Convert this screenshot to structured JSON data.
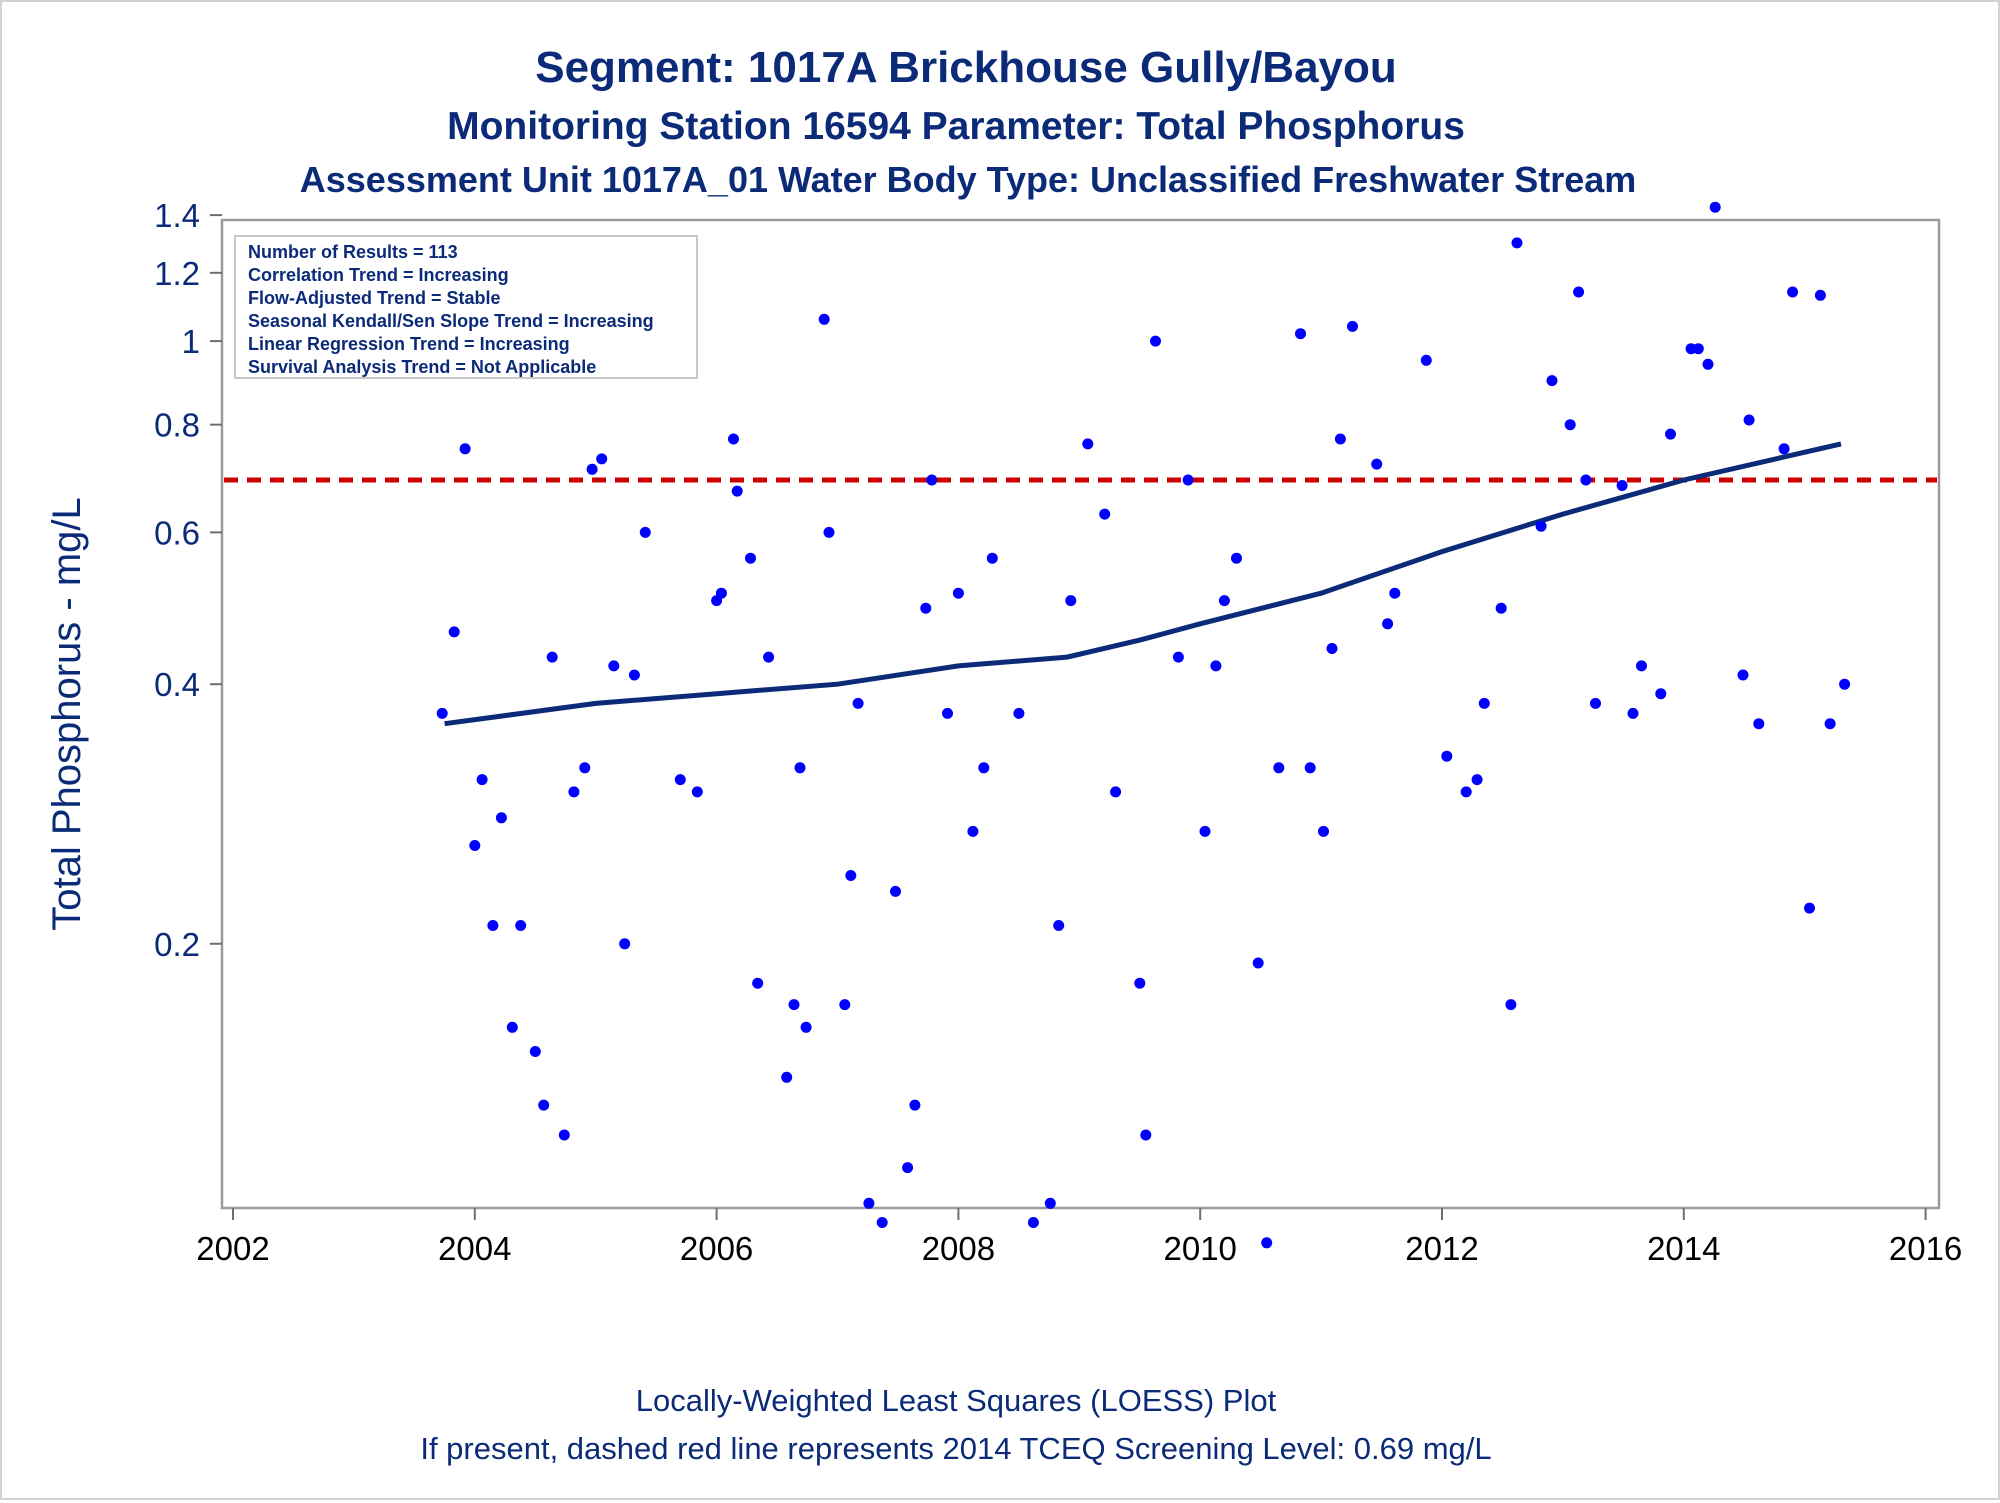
{
  "titles": {
    "line1": "Segment: 1017A  Brickhouse Gully/Bayou",
    "line2": "Monitoring Station 16594 Parameter: Total Phosphorus",
    "line3": "Assessment Unit 1017A_01   Water Body Type: Unclassified Freshwater Stream"
  },
  "footnotes": {
    "line1": "Locally-Weighted Least Squares (LOESS) Plot",
    "line2": "If present, dashed red line represents 2014 TCEQ Screening Level: 0.69 mg/L"
  },
  "info_box": [
    "Number of Results = 113",
    "Correlation Trend = Increasing",
    "Flow-Adjusted Trend = Stable",
    "Seasonal Kendall/Sen Slope Trend = Increasing",
    "Linear Regression Trend = Increasing",
    "Survival Analysis Trend = Not Applicable"
  ],
  "colors": {
    "title": "#0b2a78",
    "points": "#0000ff",
    "loess": "#0b2a78",
    "screening_line": "#cc0000",
    "frame": "#9a9a9a"
  },
  "chart_data": {
    "type": "scatter",
    "xlabel": "",
    "ylabel": "Total Phosphorus - mg/L",
    "xlim": [
      2002,
      2016
    ],
    "ylim": [
      0.08,
      1.45
    ],
    "yscale": "log",
    "grid": false,
    "x_ticks": [
      2002,
      2004,
      2006,
      2008,
      2010,
      2012,
      2014,
      2016
    ],
    "x_tick_labels": [
      "2002",
      "2004",
      "2006",
      "2008",
      "2010",
      "2012",
      "2014",
      "2016"
    ],
    "y_ticks": [
      0.2,
      0.4,
      0.6,
      0.8,
      1.0,
      1.2,
      1.4
    ],
    "y_tick_labels": [
      "0.2",
      "0.4",
      "0.6",
      "0.8",
      "1",
      "1.2",
      "1.4"
    ],
    "reference_line": {
      "y": 0.69,
      "style": "dashed"
    },
    "loess": {
      "x": [
        2003.75,
        2005.0,
        2006.0,
        2007.0,
        2008.0,
        2008.9,
        2009.5,
        2010.0,
        2011.0,
        2012.0,
        2013.0,
        2014.0,
        2015.3
      ],
      "y": [
        0.36,
        0.38,
        0.39,
        0.4,
        0.42,
        0.43,
        0.45,
        0.47,
        0.51,
        0.57,
        0.63,
        0.69,
        0.76
      ]
    },
    "points": [
      [
        2003.73,
        0.37
      ],
      [
        2003.83,
        0.46
      ],
      [
        2003.92,
        0.75
      ],
      [
        2004.0,
        0.26
      ],
      [
        2004.06,
        0.31
      ],
      [
        2004.15,
        0.21
      ],
      [
        2004.22,
        0.28
      ],
      [
        2004.31,
        0.16
      ],
      [
        2004.38,
        0.21
      ],
      [
        2004.5,
        0.15
      ],
      [
        2004.57,
        0.13
      ],
      [
        2004.64,
        0.43
      ],
      [
        2004.74,
        0.12
      ],
      [
        2004.82,
        0.3
      ],
      [
        2004.91,
        0.32
      ],
      [
        2004.97,
        0.71
      ],
      [
        2005.05,
        0.73
      ],
      [
        2005.15,
        0.42
      ],
      [
        2005.24,
        0.2
      ],
      [
        2005.32,
        0.41
      ],
      [
        2005.41,
        0.6
      ],
      [
        2005.7,
        0.31
      ],
      [
        2005.79,
        1.07
      ],
      [
        2005.84,
        0.3
      ],
      [
        2006.0,
        0.5
      ],
      [
        2006.04,
        0.51
      ],
      [
        2006.14,
        0.77
      ],
      [
        2006.17,
        0.67
      ],
      [
        2006.28,
        0.56
      ],
      [
        2006.34,
        0.18
      ],
      [
        2006.43,
        0.43
      ],
      [
        2006.58,
        0.14
      ],
      [
        2006.64,
        0.17
      ],
      [
        2006.69,
        0.32
      ],
      [
        2006.74,
        0.16
      ],
      [
        2006.89,
        1.06
      ],
      [
        2006.93,
        0.6
      ],
      [
        2007.06,
        0.17
      ],
      [
        2007.11,
        0.24
      ],
      [
        2007.17,
        0.38
      ],
      [
        2007.26,
        0.1
      ],
      [
        2007.37,
        0.095
      ],
      [
        2007.48,
        0.23
      ],
      [
        2007.58,
        0.11
      ],
      [
        2007.64,
        0.13
      ],
      [
        2007.73,
        0.49
      ],
      [
        2007.78,
        0.69
      ],
      [
        2007.91,
        0.37
      ],
      [
        2008.0,
        0.51
      ],
      [
        2008.12,
        0.27
      ],
      [
        2008.21,
        0.32
      ],
      [
        2008.28,
        0.56
      ],
      [
        2008.5,
        0.37
      ],
      [
        2008.62,
        0.095
      ],
      [
        2008.76,
        0.1
      ],
      [
        2008.83,
        0.21
      ],
      [
        2008.93,
        0.5
      ],
      [
        2009.07,
        0.76
      ],
      [
        2009.21,
        0.63
      ],
      [
        2009.3,
        0.3
      ],
      [
        2009.5,
        0.18
      ],
      [
        2009.55,
        0.12
      ],
      [
        2009.63,
        1.0
      ],
      [
        2009.82,
        0.43
      ],
      [
        2009.9,
        0.69
      ],
      [
        2010.04,
        0.27
      ],
      [
        2010.13,
        0.42
      ],
      [
        2010.2,
        0.5
      ],
      [
        2010.3,
        0.56
      ],
      [
        2010.48,
        0.19
      ],
      [
        2010.55,
        0.09
      ],
      [
        2010.65,
        0.32
      ],
      [
        2010.83,
        1.02
      ],
      [
        2010.91,
        0.32
      ],
      [
        2011.02,
        0.27
      ],
      [
        2011.09,
        0.44
      ],
      [
        2011.16,
        0.77
      ],
      [
        2011.26,
        1.04
      ],
      [
        2011.46,
        0.72
      ],
      [
        2011.55,
        0.47
      ],
      [
        2011.61,
        0.51
      ],
      [
        2011.87,
        0.95
      ],
      [
        2012.04,
        0.33
      ],
      [
        2012.2,
        0.3
      ],
      [
        2012.29,
        0.31
      ],
      [
        2012.35,
        0.38
      ],
      [
        2012.49,
        0.49
      ],
      [
        2012.57,
        0.17
      ],
      [
        2012.62,
        1.3
      ],
      [
        2012.82,
        0.61
      ],
      [
        2012.91,
        0.9
      ],
      [
        2013.06,
        0.8
      ],
      [
        2013.13,
        1.14
      ],
      [
        2013.19,
        0.69
      ],
      [
        2013.27,
        0.38
      ],
      [
        2013.49,
        0.68
      ],
      [
        2013.58,
        0.37
      ],
      [
        2013.65,
        0.42
      ],
      [
        2013.81,
        0.39
      ],
      [
        2013.89,
        0.78
      ],
      [
        2014.06,
        0.98
      ],
      [
        2014.12,
        0.98
      ],
      [
        2014.2,
        0.94
      ],
      [
        2014.26,
        1.43
      ],
      [
        2014.49,
        0.41
      ],
      [
        2014.54,
        0.81
      ],
      [
        2014.62,
        0.36
      ],
      [
        2014.83,
        0.75
      ],
      [
        2014.9,
        1.14
      ],
      [
        2015.04,
        0.22
      ],
      [
        2015.13,
        1.13
      ],
      [
        2015.21,
        0.36
      ],
      [
        2015.33,
        0.4
      ]
    ]
  }
}
